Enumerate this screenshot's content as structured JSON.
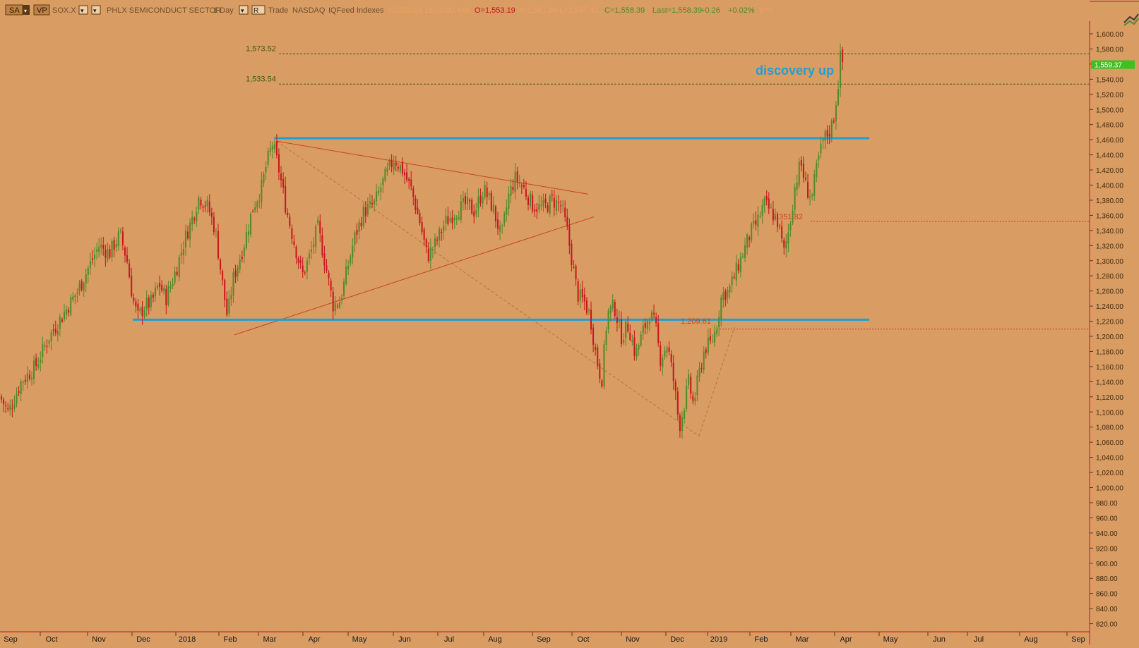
{
  "toolbar": {
    "buttons": [
      "SA",
      "VP"
    ],
    "symbol": "SOX.X",
    "name": "PHLX SEMICONDUCT SECTOR",
    "interval": "1 Day",
    "mode_button": "R",
    "trade": "Trade",
    "exchange": "NASDAQ",
    "feed": "IQFeed",
    "category": "Indexes",
    "date_time": "4/22/2019 16:00:00.448",
    "open": "O=1,553.19",
    "high": "H=1,561.84",
    "low": "L=1,547.42",
    "close": "C=1,558.39",
    "last": "Last=1,558.39",
    "change": "+0.26",
    "change_pct": "+0.02%",
    "volume": "V=0"
  },
  "colors": {
    "background": "#d99c63",
    "up_candle": "#4f8a28",
    "down_candle": "#c8141e",
    "support_resistance": "#1ea0d6",
    "trendline": "#c8441c",
    "level_line": "#3c5a14",
    "price_marker": "#3ec01e"
  },
  "chart_data": {
    "type": "candlestick",
    "title": "SOX.X",
    "y_axis": {
      "min": 810,
      "max": 1620,
      "position": "right",
      "ticks": [
        "1,600.00",
        "1,580.00",
        "1,560.00",
        "1,540.00",
        "1,520.00",
        "1,500.00",
        "1,480.00",
        "1,460.00",
        "1,440.00",
        "1,420.00",
        "1,400.00",
        "1,380.00",
        "1,360.00",
        "1,340.00",
        "1,320.00",
        "1,300.00",
        "1,280.00",
        "1,260.00",
        "1,240.00",
        "1,220.00",
        "1,200.00",
        "1,180.00",
        "1,160.00",
        "1,140.00",
        "1,120.00",
        "1,100.00",
        "1,080.00",
        "1,060.00",
        "1,040.00",
        "1,020.00",
        "1,000.00",
        "980.00",
        "960.00",
        "940.00",
        "920.00",
        "900.00",
        "880.00",
        "860.00",
        "840.00",
        "820.00"
      ]
    },
    "x_axis": {
      "labels": [
        "Sep",
        "Oct",
        "Nov",
        "Dec",
        "2018",
        "Feb",
        "Mar",
        "Apr",
        "May",
        "Jun",
        "Jul",
        "Aug",
        "Sep",
        "Oct",
        "Nov",
        "Dec",
        "2019",
        "Feb",
        "Mar",
        "Apr",
        "May",
        "Jun",
        "Jul",
        "Aug",
        "Sep"
      ]
    },
    "price_marker": "1,559.37",
    "levels": [
      {
        "label": "1,573.52",
        "value": 1573.52
      },
      {
        "label": "1,533.54",
        "value": 1533.54
      }
    ],
    "annotations": {
      "text": "discovery up",
      "low_label": "1,209.61",
      "mid_label": "1,351.82"
    },
    "horizontal_lines": [
      1462,
      1222
    ],
    "anchors": [
      [
        0,
        1120
      ],
      [
        12,
        1100
      ],
      [
        30,
        1140
      ],
      [
        50,
        1160
      ],
      [
        70,
        1200
      ],
      [
        90,
        1230
      ],
      [
        110,
        1260
      ],
      [
        125,
        1290
      ],
      [
        140,
        1320
      ],
      [
        155,
        1310
      ],
      [
        170,
        1335
      ],
      [
        180,
        1300
      ],
      [
        188,
        1250
      ],
      [
        195,
        1225
      ],
      [
        205,
        1240
      ],
      [
        215,
        1245
      ],
      [
        225,
        1270
      ],
      [
        235,
        1250
      ],
      [
        250,
        1290
      ],
      [
        262,
        1330
      ],
      [
        272,
        1355
      ],
      [
        282,
        1385
      ],
      [
        295,
        1370
      ],
      [
        305,
        1340
      ],
      [
        315,
        1270
      ],
      [
        322,
        1225
      ],
      [
        330,
        1275
      ],
      [
        345,
        1320
      ],
      [
        358,
        1370
      ],
      [
        370,
        1395
      ],
      [
        378,
        1430
      ],
      [
        386,
        1455
      ],
      [
        395,
        1420
      ],
      [
        405,
        1370
      ],
      [
        415,
        1330
      ],
      [
        428,
        1280
      ],
      [
        440,
        1310
      ],
      [
        450,
        1345
      ],
      [
        462,
        1290
      ],
      [
        472,
        1240
      ],
      [
        482,
        1248
      ],
      [
        492,
        1290
      ],
      [
        502,
        1330
      ],
      [
        515,
        1365
      ],
      [
        530,
        1375
      ],
      [
        545,
        1410
      ],
      [
        558,
        1435
      ],
      [
        570,
        1420
      ],
      [
        582,
        1395
      ],
      [
        595,
        1350
      ],
      [
        605,
        1305
      ],
      [
        618,
        1325
      ],
      [
        630,
        1350
      ],
      [
        645,
        1365
      ],
      [
        660,
        1375
      ],
      [
        672,
        1365
      ],
      [
        685,
        1395
      ],
      [
        698,
        1370
      ],
      [
        710,
        1330
      ],
      [
        720,
        1385
      ],
      [
        730,
        1410
      ],
      [
        742,
        1395
      ],
      [
        755,
        1372
      ],
      [
        770,
        1370
      ],
      [
        782,
        1380
      ],
      [
        795,
        1372
      ],
      [
        803,
        1340
      ],
      [
        810,
        1300
      ],
      [
        818,
        1255
      ],
      [
        828,
        1245
      ],
      [
        836,
        1225
      ],
      [
        844,
        1175
      ],
      [
        852,
        1140
      ],
      [
        860,
        1230
      ],
      [
        870,
        1240
      ],
      [
        880,
        1200
      ],
      [
        890,
        1215
      ],
      [
        900,
        1175
      ],
      [
        910,
        1205
      ],
      [
        920,
        1230
      ],
      [
        928,
        1215
      ],
      [
        935,
        1170
      ],
      [
        945,
        1190
      ],
      [
        955,
        1135
      ],
      [
        962,
        1080
      ],
      [
        968,
        1105
      ],
      [
        975,
        1140
      ],
      [
        982,
        1110
      ],
      [
        990,
        1150
      ],
      [
        998,
        1185
      ],
      [
        1006,
        1190
      ],
      [
        1014,
        1210
      ],
      [
        1022,
        1255
      ],
      [
        1032,
        1260
      ],
      [
        1042,
        1285
      ],
      [
        1052,
        1310
      ],
      [
        1062,
        1335
      ],
      [
        1072,
        1350
      ],
      [
        1082,
        1375
      ],
      [
        1092,
        1365
      ],
      [
        1102,
        1350
      ],
      [
        1110,
        1310
      ],
      [
        1118,
        1345
      ],
      [
        1126,
        1400
      ],
      [
        1134,
        1430
      ],
      [
        1142,
        1395
      ],
      [
        1150,
        1385
      ],
      [
        1158,
        1430
      ],
      [
        1166,
        1460
      ],
      [
        1174,
        1470
      ],
      [
        1180,
        1485
      ],
      [
        1186,
        1525
      ],
      [
        1190,
        1568
      ],
      [
        1196,
        1558
      ]
    ]
  }
}
